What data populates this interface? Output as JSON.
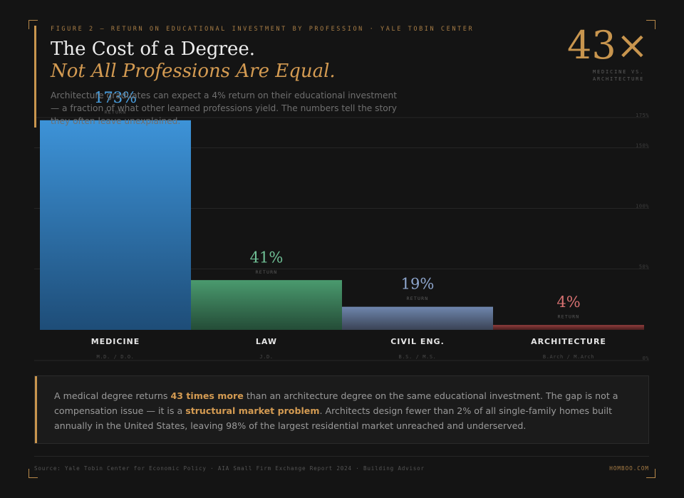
{
  "header": {
    "kicker": "FIGURE 2 — RETURN ON EDUCATIONAL INVESTMENT BY PROFESSION · YALE TOBIN CENTER",
    "title_line1": "The Cost of a Degree.",
    "title_line2": "Not All Professions Are Equal.",
    "description": "Architecture graduates can expect a 4% return on their educational investment — a fraction of what other learned professions yield. The numbers tell the story they often leave unexplained."
  },
  "headline_stat": {
    "value": "43×",
    "caption_line1": "MEDICINE VS.",
    "caption_line2": "ARCHITECTURE"
  },
  "chart_data": {
    "type": "bar",
    "title": "",
    "xlabel": "",
    "ylabel": "",
    "ylim": [
      0,
      175
    ],
    "yticks": [
      0,
      50,
      100,
      150,
      175
    ],
    "ytick_labels": [
      "0%",
      "50%",
      "100%",
      "150%",
      "175%"
    ],
    "grid": true,
    "legend": "none",
    "value_sublabel": "RETURN",
    "categories": [
      "MEDICINE",
      "LAW",
      "CIVIL ENG.",
      "ARCHITECTURE"
    ],
    "degrees": [
      "M.D. / D.O.",
      "J.D.",
      "B.S. / M.S.",
      "B.Arch / M.Arch"
    ],
    "values": [
      173,
      41,
      19,
      4
    ],
    "value_labels": [
      "173%",
      "41%",
      "19%",
      "4%"
    ],
    "colors_top": [
      "#3d93d8",
      "#4a9a6e",
      "#6f86ad",
      "#8a3a3a"
    ],
    "colors_bottom": [
      "#1e4d78",
      "#244c37",
      "#3a4355",
      "#4a1f1f"
    ],
    "label_colors": [
      "#4aa3e6",
      "#6fbf95",
      "#8fa7cf",
      "#d97272"
    ]
  },
  "callout": {
    "part1": "A medical degree returns ",
    "highlight1": "43 times more",
    "part2": " than an architecture degree on the same educational investment. The gap is not a compensation issue — it is a ",
    "highlight2": "structural market problem",
    "part3": ". Architects design fewer than 2% of all single-family homes built annually in the United States, leaving 98% of the largest residential market unreached and underserved."
  },
  "footer": {
    "sources": "Source: Yale Tobin Center for Economic Policy  ·  AIA Small Firm Exchange Report 2024  ·  Building Advisor",
    "brand": "HOMBOO.COM"
  }
}
